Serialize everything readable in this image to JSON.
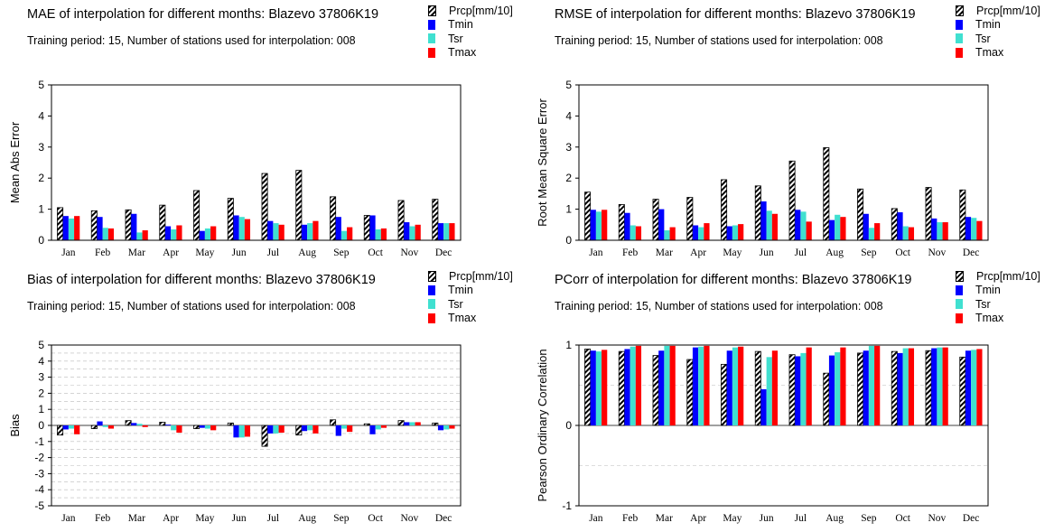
{
  "legend": {
    "items": [
      {
        "label": "Prcp[mm/10]",
        "color": "hatch"
      },
      {
        "label": "Tmin",
        "color": "#0000ff"
      },
      {
        "label": "Tsr",
        "color": "#40e0d0"
      },
      {
        "label": "Tmax",
        "color": "#ff0000"
      }
    ]
  },
  "colors": {
    "Prcp": "#000000",
    "Tmin": "#0000ff",
    "Tsr": "#40e0d0",
    "Tmax": "#ff0000"
  },
  "chart_data": [
    {
      "type": "bar",
      "title": "MAE of interpolation for different months: Blazevo  37806K19",
      "subtitle": "Training period: 15, Number of stations used for interpolation: 008",
      "ylabel": "Mean Abs Error",
      "ylim": [
        0,
        5
      ],
      "yticks": [
        0,
        1,
        2,
        3,
        4,
        5
      ],
      "categories": [
        "Jan",
        "Feb",
        "Mar",
        "Apr",
        "May",
        "Jun",
        "Jul",
        "Aug",
        "Sep",
        "Oct",
        "Nov",
        "Dec"
      ],
      "series": [
        {
          "name": "Prcp[mm/10]",
          "values": [
            1.05,
            0.95,
            0.98,
            1.13,
            1.6,
            1.35,
            2.15,
            2.25,
            1.4,
            0.8,
            1.28,
            1.32
          ]
        },
        {
          "name": "Tmin",
          "values": [
            0.78,
            0.75,
            0.85,
            0.45,
            0.3,
            0.8,
            0.62,
            0.5,
            0.75,
            0.8,
            0.58,
            0.55
          ]
        },
        {
          "name": "Tsr",
          "values": [
            0.7,
            0.4,
            0.25,
            0.35,
            0.38,
            0.75,
            0.55,
            0.55,
            0.3,
            0.35,
            0.45,
            0.55
          ]
        },
        {
          "name": "Tmax",
          "values": [
            0.78,
            0.38,
            0.32,
            0.48,
            0.45,
            0.68,
            0.5,
            0.62,
            0.42,
            0.38,
            0.5,
            0.55
          ]
        }
      ]
    },
    {
      "type": "bar",
      "title": "RMSE of interpolation for different months: Blazevo  37806K19",
      "subtitle": "Training period: 15, Number of stations used for interpolation: 008",
      "ylabel": "Root Mean Square Error",
      "ylim": [
        0,
        5
      ],
      "yticks": [
        0,
        1,
        2,
        3,
        4,
        5
      ],
      "categories": [
        "Jan",
        "Feb",
        "Mar",
        "Apr",
        "May",
        "Jun",
        "Jul",
        "Aug",
        "Sep",
        "Oct",
        "Nov",
        "Dec"
      ],
      "series": [
        {
          "name": "Prcp[mm/10]",
          "values": [
            1.55,
            1.15,
            1.32,
            1.38,
            1.95,
            1.75,
            2.55,
            2.98,
            1.65,
            1.02,
            1.7,
            1.62
          ]
        },
        {
          "name": "Tmin",
          "values": [
            0.98,
            0.88,
            1.0,
            0.48,
            0.45,
            1.25,
            0.98,
            0.65,
            0.85,
            0.9,
            0.7,
            0.75
          ]
        },
        {
          "name": "Tsr",
          "values": [
            0.92,
            0.48,
            0.32,
            0.42,
            0.48,
            0.95,
            0.92,
            0.82,
            0.4,
            0.45,
            0.58,
            0.72
          ]
        },
        {
          "name": "Tmax",
          "values": [
            0.98,
            0.45,
            0.42,
            0.55,
            0.52,
            0.85,
            0.6,
            0.75,
            0.55,
            0.42,
            0.58,
            0.62
          ]
        }
      ]
    },
    {
      "type": "bar",
      "title": "Bias of interpolation for different months: Blazevo  37806K19",
      "subtitle": "Training period: 15, Number of stations used for interpolation: 008",
      "ylabel": "Bias",
      "ylim": [
        -5,
        5
      ],
      "yticks": [
        -5,
        -4,
        -3,
        -2,
        -1,
        0,
        1,
        2,
        3,
        4,
        5
      ],
      "grid": true,
      "categories": [
        "Jan",
        "Feb",
        "Mar",
        "Apr",
        "May",
        "Jun",
        "Jul",
        "Aug",
        "Sep",
        "Oct",
        "Nov",
        "Dec"
      ],
      "series": [
        {
          "name": "Prcp[mm/10]",
          "values": [
            -0.6,
            -0.2,
            0.3,
            0.2,
            -0.2,
            0.15,
            -1.3,
            -0.6,
            0.35,
            0.1,
            0.3,
            0.15
          ]
        },
        {
          "name": "Tmin",
          "values": [
            -0.25,
            0.25,
            0.15,
            0.05,
            -0.15,
            -0.75,
            -0.5,
            -0.35,
            -0.65,
            -0.55,
            0.2,
            -0.3
          ]
        },
        {
          "name": "Tsr",
          "values": [
            -0.2,
            -0.1,
            0.1,
            -0.3,
            -0.2,
            -0.75,
            -0.5,
            -0.3,
            -0.2,
            -0.25,
            0.2,
            -0.25
          ]
        },
        {
          "name": "Tmax",
          "values": [
            -0.55,
            -0.2,
            -0.1,
            -0.45,
            -0.3,
            -0.7,
            -0.45,
            -0.5,
            -0.4,
            -0.15,
            0.2,
            -0.2
          ]
        }
      ]
    },
    {
      "type": "bar",
      "title": "PCorr of interpolation for different months: Blazevo  37806K19",
      "subtitle": "Training period: 15, Number of stations used for interpolation: 008",
      "ylabel": "Pearson Ordinary Correlation",
      "ylim": [
        -1,
        1
      ],
      "yticks": [
        -1,
        0,
        1
      ],
      "grid": true,
      "categories": [
        "Jan",
        "Feb",
        "Mar",
        "Apr",
        "May",
        "Jun",
        "Jul",
        "Aug",
        "Sep",
        "Oct",
        "Nov",
        "Dec"
      ],
      "series": [
        {
          "name": "Prcp[mm/10]",
          "values": [
            0.95,
            0.92,
            0.87,
            0.82,
            0.76,
            0.92,
            0.88,
            0.65,
            0.9,
            0.92,
            0.93,
            0.85
          ]
        },
        {
          "name": "Tmin",
          "values": [
            0.93,
            0.95,
            0.93,
            0.97,
            0.93,
            0.45,
            0.86,
            0.87,
            0.93,
            0.9,
            0.96,
            0.93
          ]
        },
        {
          "name": "Tsr",
          "values": [
            0.92,
            0.98,
            0.99,
            0.98,
            0.97,
            0.85,
            0.9,
            0.91,
            0.99,
            0.96,
            0.97,
            0.94
          ]
        },
        {
          "name": "Tmax",
          "values": [
            0.94,
            0.99,
            0.99,
            0.99,
            0.98,
            0.93,
            0.97,
            0.97,
            0.99,
            0.96,
            0.97,
            0.95
          ]
        }
      ]
    }
  ]
}
